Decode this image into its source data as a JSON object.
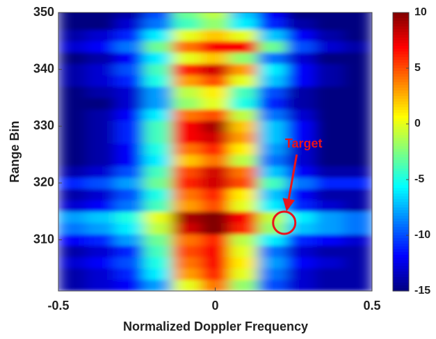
{
  "chart_data": {
    "type": "heatmap",
    "xlabel": "Normalized Doppler Frequency",
    "ylabel": "Range Bin",
    "x": [
      -0.455,
      -0.364,
      -0.273,
      -0.182,
      -0.091,
      0,
      0.091,
      0.182,
      0.273,
      0.364,
      0.455
    ],
    "y": [
      302,
      304,
      306,
      308,
      310,
      312,
      314,
      316,
      318,
      320,
      322,
      324,
      326,
      328,
      330,
      332,
      334,
      336,
      338,
      340,
      342,
      344,
      346,
      348,
      350
    ],
    "z": [
      [
        -14,
        -13,
        -12,
        -8,
        0,
        4,
        -2,
        -10,
        -13,
        -14,
        -14
      ],
      [
        -14,
        -13,
        -11,
        -6,
        3,
        6,
        0,
        -9,
        -13,
        -14,
        -14
      ],
      [
        -13,
        -12,
        -10,
        -5,
        4,
        7,
        1,
        -8,
        -12,
        -13,
        -14
      ],
      [
        -14,
        -13,
        -11,
        -4,
        5,
        7,
        0,
        -9,
        -13,
        -14,
        -14
      ],
      [
        -12,
        -11,
        -8,
        -3,
        4,
        6,
        -1,
        -6,
        -11,
        -12,
        -13
      ],
      [
        -9,
        -8,
        -6,
        -1,
        8,
        10,
        6,
        -2,
        -7,
        -8,
        -9
      ],
      [
        -8,
        -7,
        -5,
        0,
        9,
        10,
        7,
        -1,
        -6,
        -8,
        -9
      ],
      [
        -13,
        -12,
        -9,
        -4,
        3,
        5,
        0,
        -6,
        -11,
        -13,
        -14
      ],
      [
        -14,
        -13,
        -10,
        -5,
        4,
        6,
        1,
        -7,
        -12,
        -14,
        -14
      ],
      [
        -11,
        -10,
        -8,
        -3,
        6,
        8,
        5,
        -4,
        -9,
        -11,
        -11
      ],
      [
        -14,
        -13,
        -10,
        -4,
        5,
        8,
        4,
        -7,
        -12,
        -14,
        -14
      ],
      [
        -15,
        -14,
        -12,
        -6,
        2,
        4,
        -1,
        -9,
        -13,
        -15,
        -15
      ],
      [
        -15,
        -14,
        -12,
        -5,
        4,
        6,
        1,
        -8,
        -13,
        -15,
        -15
      ],
      [
        -15,
        -14,
        -11,
        -4,
        7,
        8,
        3,
        -7,
        -12,
        -15,
        -15
      ],
      [
        -15,
        -14,
        -11,
        -4,
        7,
        9,
        2,
        -7,
        -12,
        -15,
        -15
      ],
      [
        -15,
        -14,
        -12,
        -6,
        4,
        5,
        -1,
        -9,
        -13,
        -15,
        -15
      ],
      [
        -15,
        -15,
        -13,
        -8,
        -2,
        0,
        -5,
        -11,
        -14,
        -15,
        -15
      ],
      [
        -15,
        -14,
        -13,
        -8,
        -1,
        1,
        -4,
        -10,
        -14,
        -15,
        -15
      ],
      [
        -14,
        -13,
        -11,
        -5,
        3,
        5,
        0,
        -7,
        -12,
        -14,
        -15
      ],
      [
        -14,
        -13,
        -10,
        -4,
        6,
        8,
        3,
        -6,
        -12,
        -14,
        -15
      ],
      [
        -15,
        -14,
        -12,
        -6,
        0,
        2,
        -2,
        -9,
        -13,
        -15,
        -15
      ],
      [
        -13,
        -12,
        -9,
        -3,
        4,
        7,
        7,
        -3,
        -10,
        -13,
        -14
      ],
      [
        -14,
        -13,
        -11,
        -6,
        0,
        2,
        0,
        -7,
        -12,
        -14,
        -15
      ],
      [
        -15,
        -15,
        -13,
        -9,
        -4,
        -2,
        -6,
        -11,
        -14,
        -15,
        -15
      ],
      [
        -15,
        -15,
        -14,
        -10,
        -3,
        -1,
        -7,
        -12,
        -15,
        -15,
        -15
      ]
    ],
    "xlim": [
      -0.5,
      0.5
    ],
    "xticks": [
      -0.5,
      0,
      0.5
    ],
    "ylim": [
      301,
      350
    ],
    "yticks": [
      310,
      320,
      330,
      340,
      350
    ],
    "colormap": "jet",
    "clim": [
      -15,
      10
    ],
    "cticks": [
      -15,
      -10,
      -5,
      0,
      5,
      10
    ],
    "annotation": {
      "text": "Target",
      "x": 0.22,
      "y": 313,
      "color": "#e8141c"
    }
  }
}
